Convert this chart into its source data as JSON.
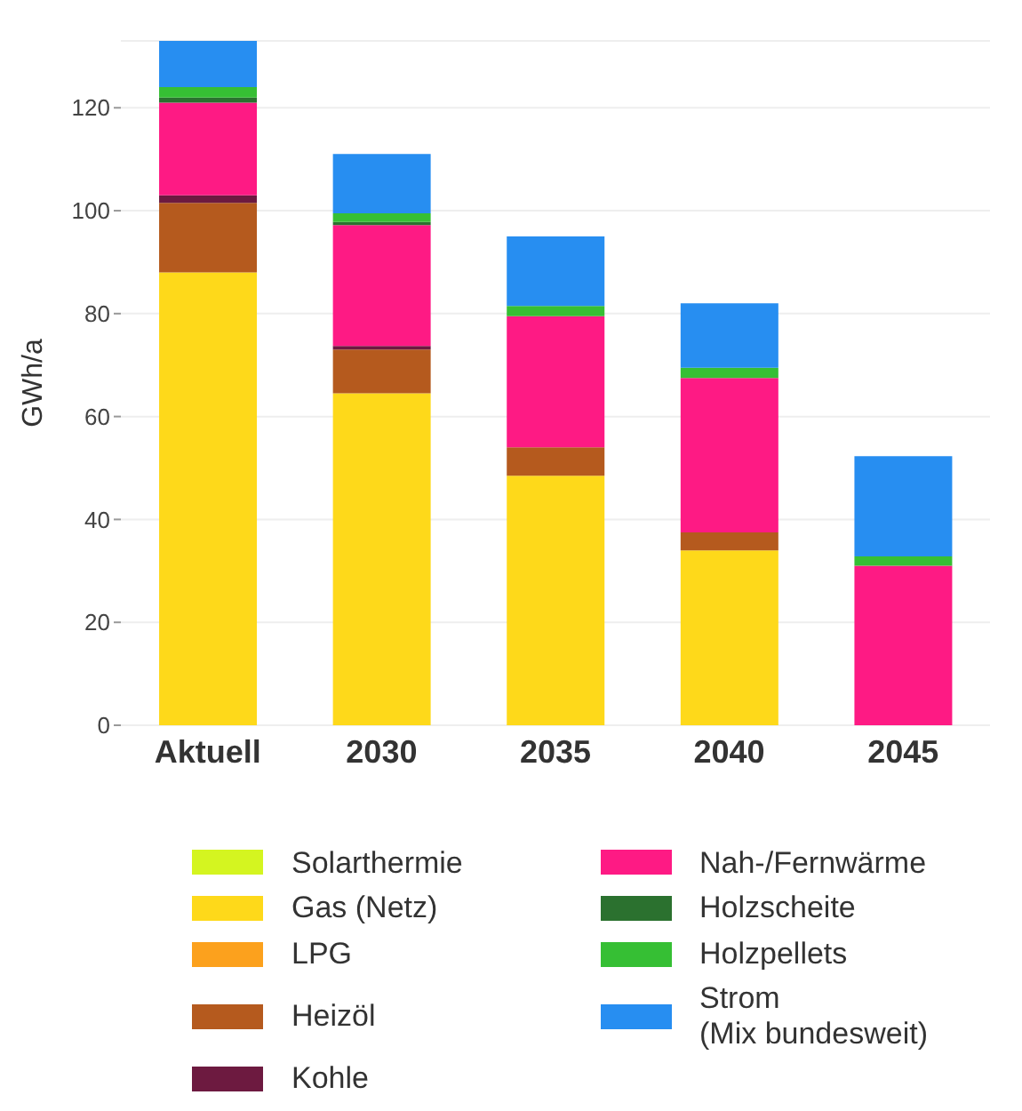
{
  "chart_data": {
    "type": "bar",
    "stacked": true,
    "ylabel": "GWh/a",
    "categories": [
      "Aktuell",
      "2030",
      "2035",
      "2040",
      "2045"
    ],
    "series": [
      {
        "name": "Solarthermie",
        "color": "#d4f520",
        "values": [
          0,
          0,
          0,
          0,
          0
        ]
      },
      {
        "name": "Gas (Netz)",
        "color": "#fed91a",
        "values": [
          88,
          64.5,
          48.5,
          34,
          0
        ]
      },
      {
        "name": "LPG",
        "color": "#fca11d",
        "values": [
          0,
          0,
          0,
          0,
          0
        ]
      },
      {
        "name": "Heizöl",
        "color": "#b55a1e",
        "values": [
          13.5,
          8.5,
          5.5,
          3.5,
          0
        ]
      },
      {
        "name": "Kohle",
        "color": "#6d1a40",
        "values": [
          1.5,
          0.7,
          0,
          0,
          0
        ]
      },
      {
        "name": "Nah-/Fernwärme",
        "color": "#fe1a84",
        "values": [
          18,
          23.5,
          25.5,
          30,
          31
        ]
      },
      {
        "name": "Holzscheite",
        "color": "#2b712f",
        "values": [
          1,
          0.6,
          0,
          0,
          0
        ]
      },
      {
        "name": "Holzpellets",
        "color": "#36bf34",
        "values": [
          2,
          1.7,
          2,
          2,
          1.8
        ]
      },
      {
        "name": "Strom\n(Mix bundesweit)",
        "color": "#278ef1",
        "values": [
          9,
          11.5,
          13.5,
          12.5,
          19.5
        ]
      }
    ],
    "ylim": [
      0,
      133
    ],
    "yticks": [
      0,
      20,
      40,
      60,
      80,
      100,
      120
    ],
    "grid": "y",
    "legend": "bottom"
  }
}
